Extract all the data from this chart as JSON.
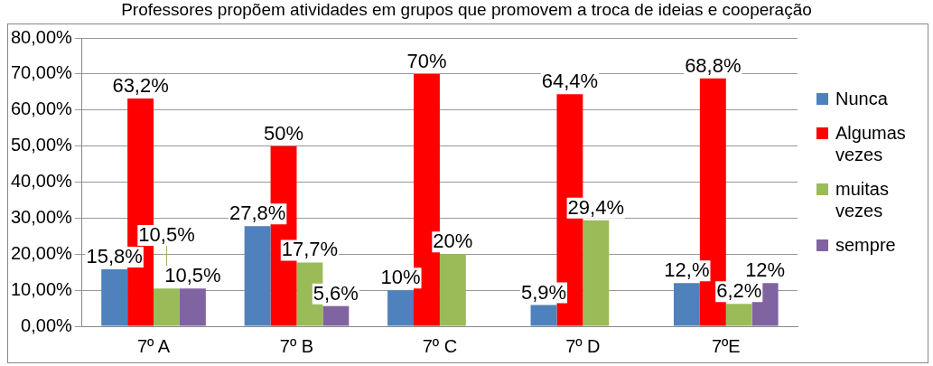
{
  "chart_data": {
    "type": "bar",
    "title": "Professores propõem atividades em grupos que promovem a troca de ideias e cooperação",
    "categories": [
      "7º A",
      "7º B",
      "7º C",
      "7º D",
      "7ºE"
    ],
    "series": [
      {
        "name": "Nunca",
        "color": "#4f81bd",
        "values": [
          15.8,
          27.8,
          10,
          5.9,
          12
        ],
        "value_labels": [
          "15,8%",
          "27,8%",
          "10%",
          "5,9%",
          "12,%"
        ]
      },
      {
        "name": "Algumas vezes",
        "color": "#ff0000",
        "values": [
          63.2,
          50,
          70,
          64.4,
          68.8
        ],
        "value_labels": [
          "63,2%",
          "50%",
          "70%",
          "64,4%",
          "68,8%"
        ]
      },
      {
        "name": "muitas vezes",
        "color": "#9bbb59",
        "values": [
          10.5,
          17.7,
          20,
          29.4,
          6.2
        ],
        "value_labels": [
          "10,5%",
          "17,7%",
          "20%",
          "29,4%",
          "6,2%"
        ]
      },
      {
        "name": "sempre",
        "color": "#8064a2",
        "values": [
          10.5,
          5.6,
          null,
          null,
          12
        ],
        "value_labels": [
          "10,5%",
          "5,6%",
          null,
          null,
          "12%"
        ]
      }
    ],
    "ylim": [
      0,
      80
    ],
    "yticks": [
      {
        "value": 0,
        "label": "0,00%"
      },
      {
        "value": 10,
        "label": "10,00%"
      },
      {
        "value": 20,
        "label": "20,00%"
      },
      {
        "value": 30,
        "label": "30,00%"
      },
      {
        "value": 40,
        "label": "40,00%"
      },
      {
        "value": 50,
        "label": "50,00%"
      },
      {
        "value": 60,
        "label": "60,00%"
      },
      {
        "value": 70,
        "label": "70,00%"
      },
      {
        "value": 80,
        "label": "80,00%"
      }
    ],
    "grid": "y",
    "legend": "right"
  }
}
